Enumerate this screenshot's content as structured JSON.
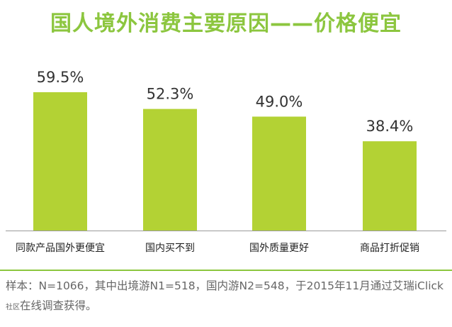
{
  "colors": {
    "accent": "#8cc63f",
    "bar": "#b3d234",
    "axis": "#9a9a9a",
    "divider": "#8cc63f"
  },
  "chart_data": {
    "type": "bar",
    "title": "国人境外消费主要原因——价格便宜",
    "categories": [
      "同款产品国外更便宜",
      "国内买不到",
      "国外质量更好",
      "商品打折促销"
    ],
    "values": [
      59.5,
      52.3,
      49.0,
      38.4
    ],
    "value_labels": [
      "59.5%",
      "52.3%",
      "49.0%",
      "38.4%"
    ],
    "xlabel": "",
    "ylabel": "",
    "ylim": [
      0,
      60
    ],
    "grid": false,
    "legend": "none"
  },
  "footnote": {
    "main": "样本：N=1066，其中出境游N1=518，国内游N2=548，于2015年11月通过艾瑞iClick",
    "small": "社区",
    "tail": "在线调查获得。"
  }
}
